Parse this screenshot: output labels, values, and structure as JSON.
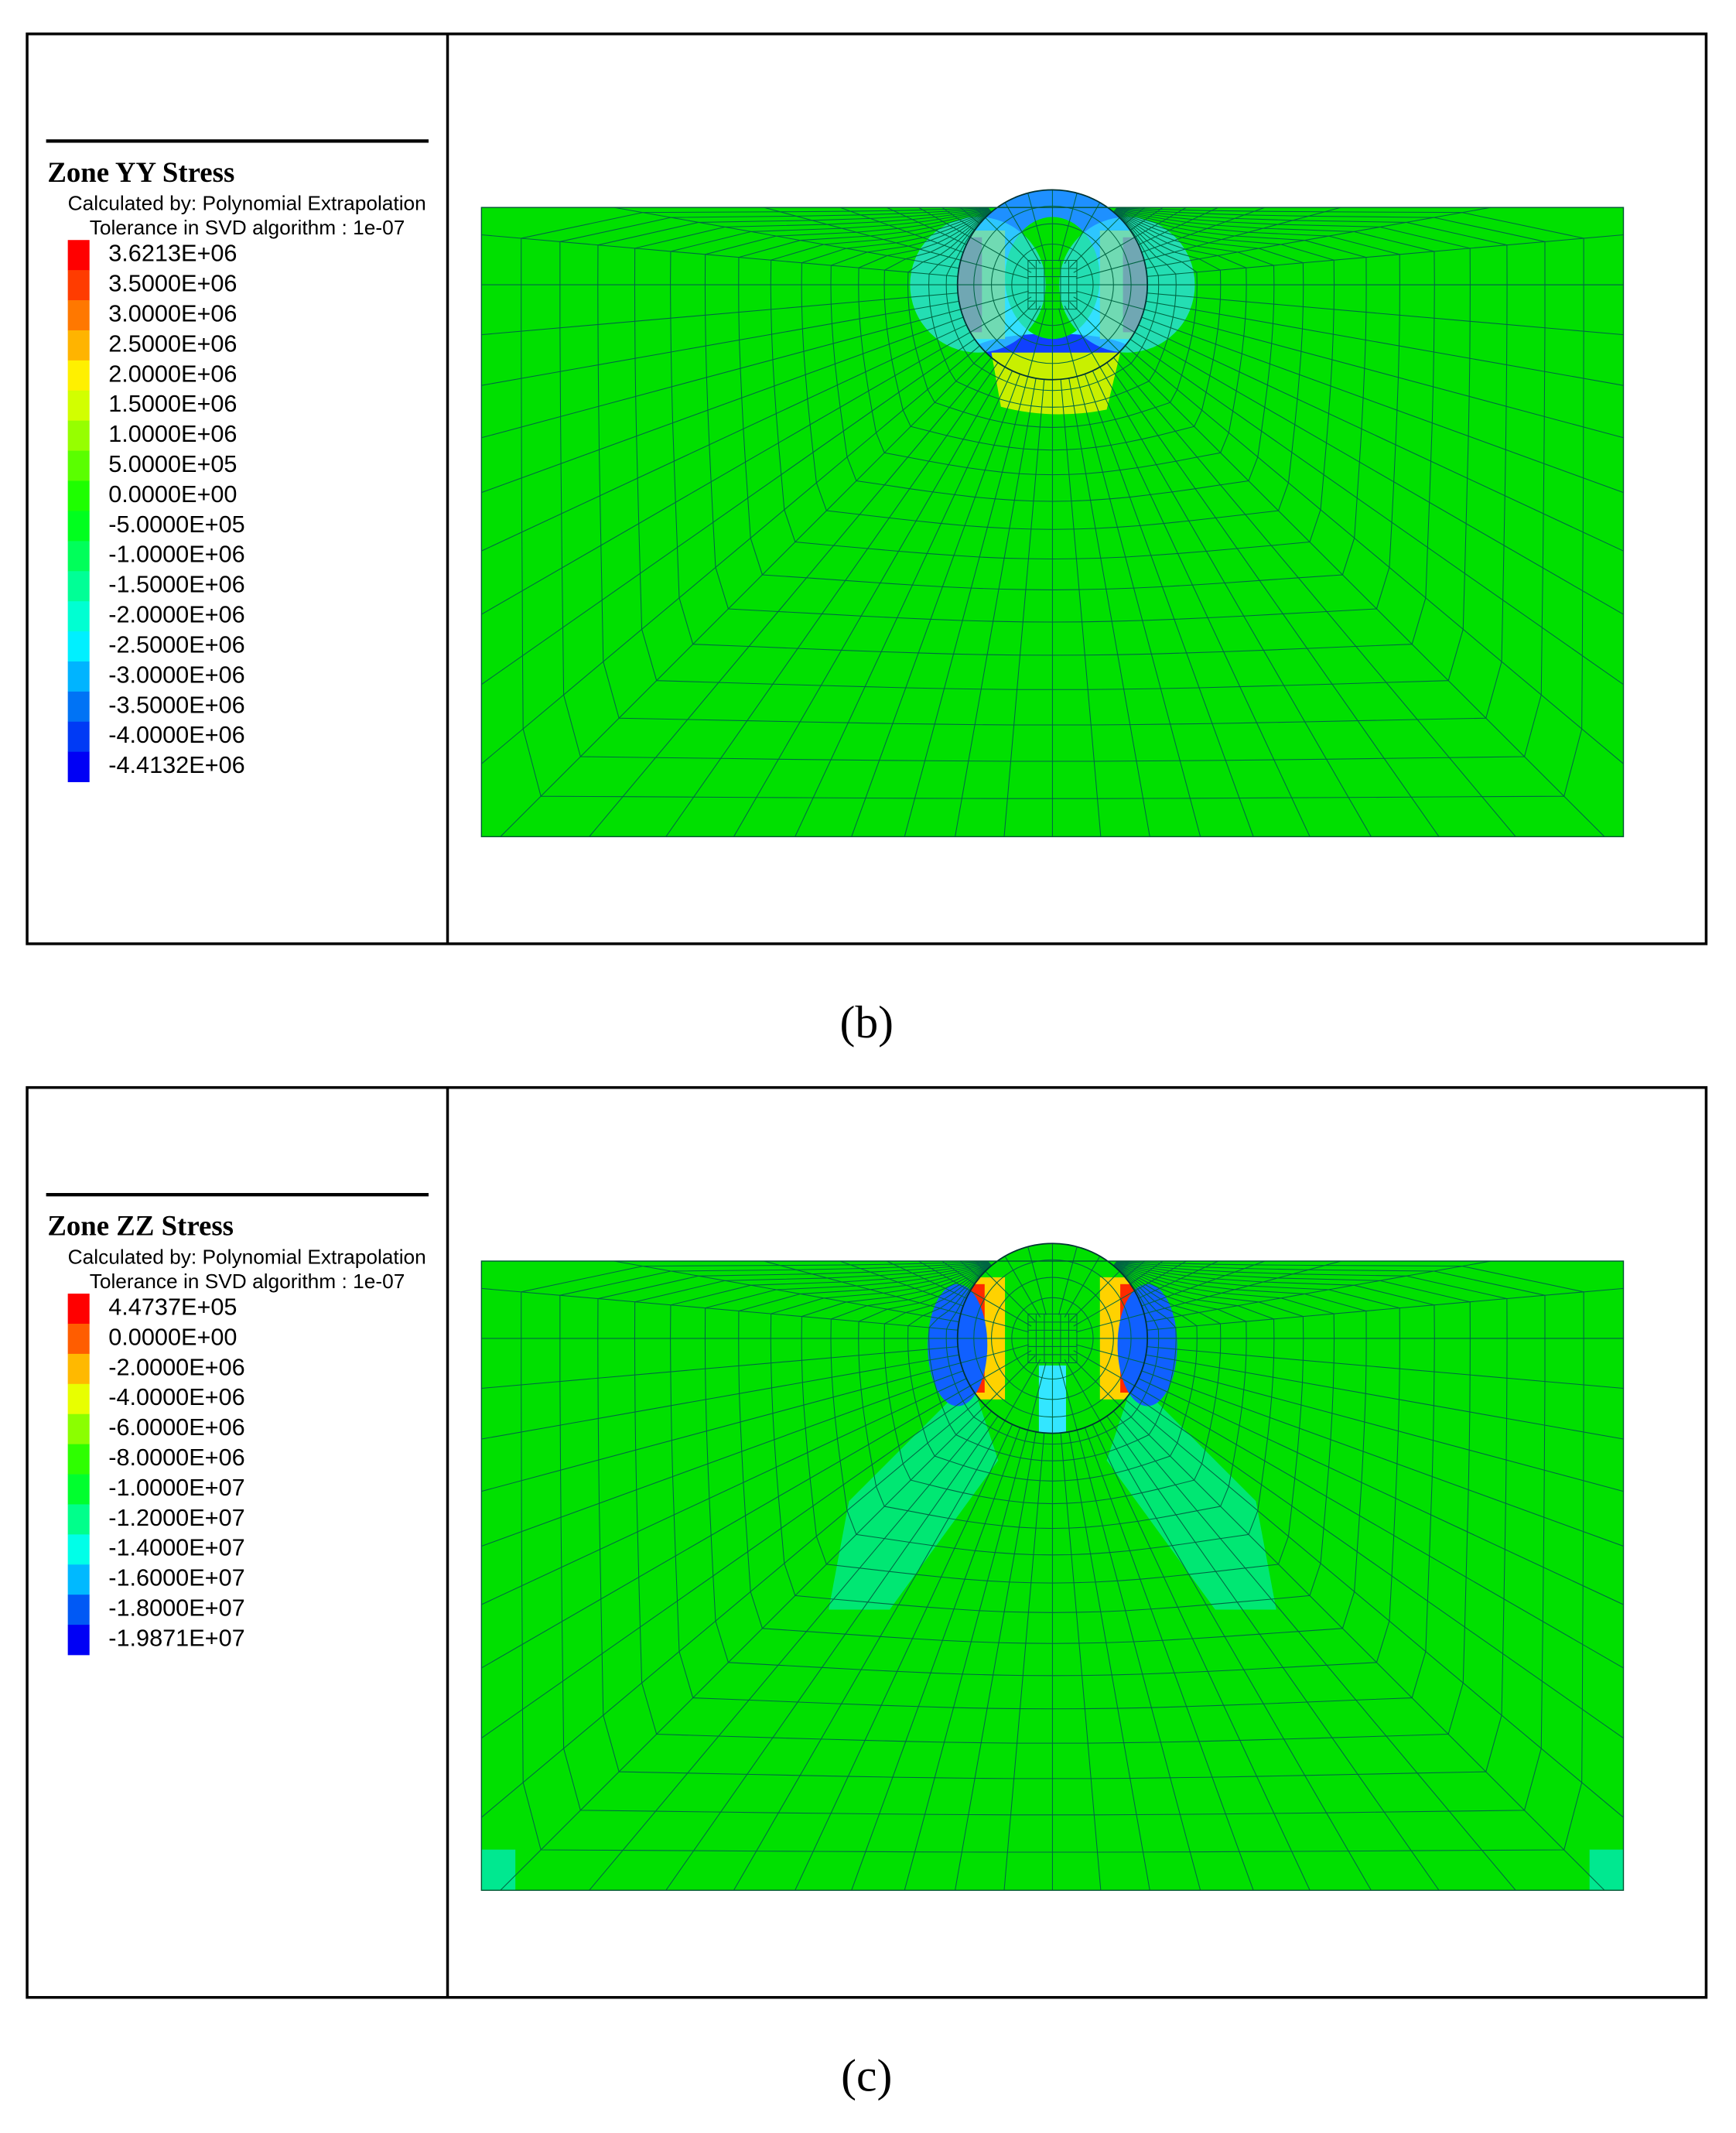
{
  "panels": [
    {
      "title": "Zone YY Stress",
      "subtitle": "Calculated by: Polynomial Extrapolation",
      "tolerance": "Tolerance in SVD algorithm : 1e-07",
      "legend": [
        "3.6213E+06",
        "3.5000E+06",
        "3.0000E+06",
        "2.5000E+06",
        "2.0000E+06",
        "1.5000E+06",
        "1.0000E+06",
        "5.0000E+05",
        "0.0000E+00",
        "-5.0000E+05",
        "-1.0000E+06",
        "-1.5000E+06",
        "-2.0000E+06",
        "-2.5000E+06",
        "-3.0000E+06",
        "-3.5000E+06",
        "-4.0000E+06",
        "-4.4132E+06"
      ],
      "caption": "(b)"
    },
    {
      "title": "Zone ZZ Stress",
      "subtitle": "Calculated by: Polynomial Extrapolation",
      "tolerance": "Tolerance in SVD algorithm : 1e-07",
      "legend": [
        "4.4737E+05",
        "0.0000E+00",
        "-2.0000E+06",
        "-4.0000E+06",
        "-6.0000E+06",
        "-8.0000E+06",
        "-1.0000E+07",
        "-1.2000E+07",
        "-1.4000E+07",
        "-1.6000E+07",
        "-1.8000E+07",
        "-1.9871E+07"
      ],
      "caption": "(c)"
    }
  ]
}
